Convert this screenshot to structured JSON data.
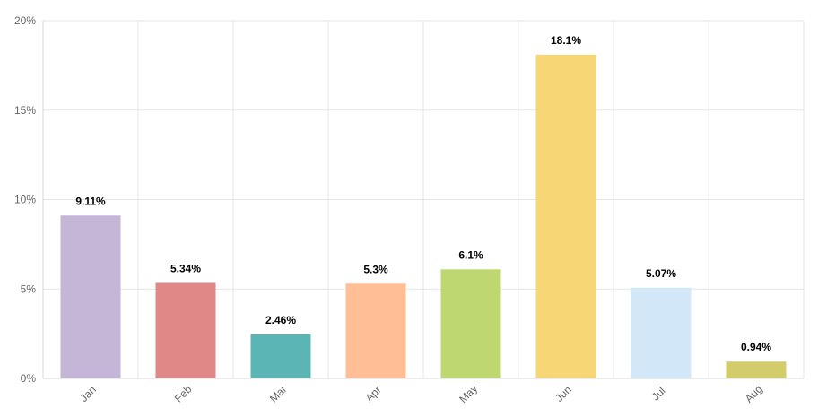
{
  "chart_data": {
    "type": "bar",
    "categories": [
      "Jan",
      "Feb",
      "Mar",
      "Apr",
      "May",
      "Jun",
      "Jul",
      "Aug"
    ],
    "values": [
      9.11,
      5.34,
      2.46,
      5.3,
      6.1,
      18.1,
      5.07,
      0.94
    ],
    "data_labels": [
      "9.11%",
      "5.34%",
      "2.46%",
      "5.3%",
      "6.1%",
      "18.1%",
      "5.07%",
      "0.94%"
    ],
    "colors": [
      "#c5b6d8",
      "#e08787",
      "#5bb5b5",
      "#ffbe96",
      "#bfd771",
      "#f7d675",
      "#d2e7f8",
      "#d2cc6b"
    ],
    "ylim": [
      0,
      20
    ],
    "yticks": [
      0,
      5,
      10,
      15,
      20
    ],
    "ytick_labels": [
      "0%",
      "5%",
      "10%",
      "15%",
      "20%"
    ],
    "grid": true,
    "title": "",
    "xlabel": "",
    "ylabel": ""
  }
}
